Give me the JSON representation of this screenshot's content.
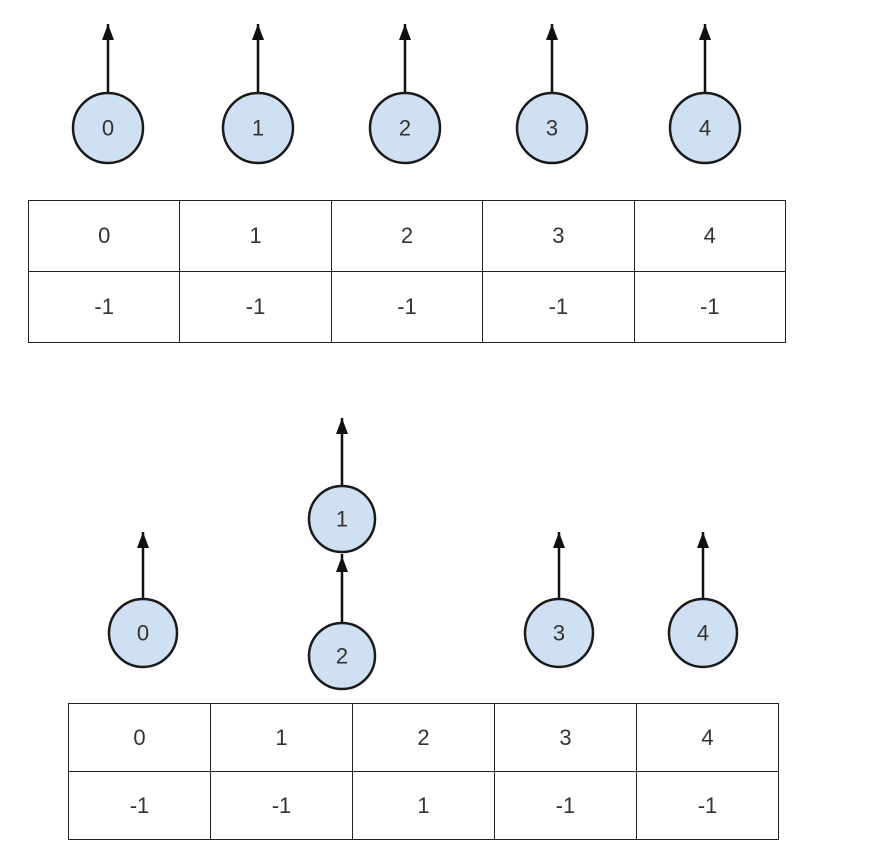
{
  "diagram1": {
    "nodes": [
      "0",
      "1",
      "2",
      "3",
      "4"
    ],
    "table": {
      "index_row": [
        "0",
        "1",
        "2",
        "3",
        "4"
      ],
      "parent_row": [
        "-1",
        "-1",
        "-1",
        "-1",
        "-1"
      ]
    }
  },
  "diagram2": {
    "nodes": [
      "0",
      "1",
      "2",
      "3",
      "4"
    ],
    "table": {
      "index_row": [
        "0",
        "1",
        "2",
        "3",
        "4"
      ],
      "parent_row": [
        "-1",
        "-1",
        "1",
        "-1",
        "-1"
      ]
    }
  }
}
